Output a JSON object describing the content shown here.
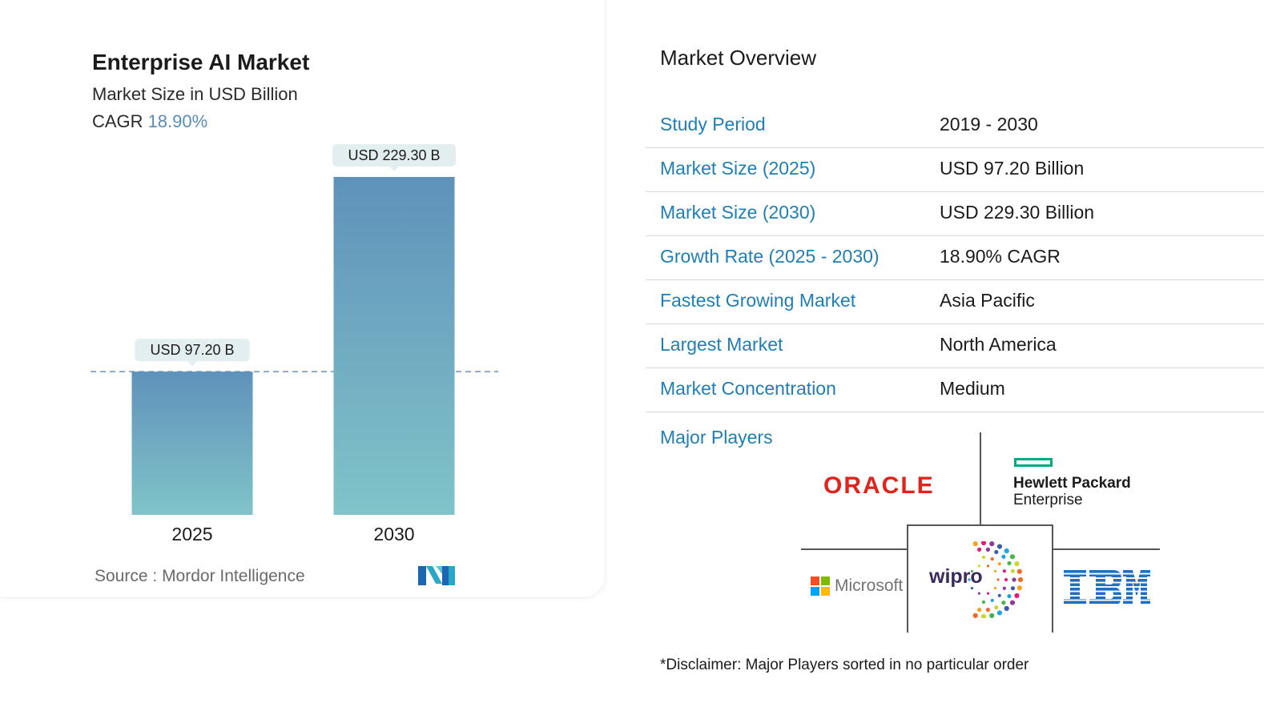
{
  "chart_data": {
    "type": "bar",
    "title": "Enterprise AI Market",
    "subtitle": "Market Size in USD Billion",
    "cagr_label": "CAGR",
    "cagr_value": "18.90%",
    "categories": [
      "2025",
      "2030"
    ],
    "values": [
      97.2,
      229.3
    ],
    "data_labels": [
      "USD 97.20 B",
      "USD 229.30 B"
    ],
    "ylim": [
      0,
      229.3
    ],
    "reference_line": 97.2,
    "bar_colors": {
      "top": "#5f92ba",
      "bottom": "#80c4c9"
    },
    "source_label": "Source :",
    "source": "Mordor Intelligence"
  },
  "overview": {
    "title": "Market Overview",
    "rows": [
      {
        "label": "Study Period",
        "value": "2019 - 2030"
      },
      {
        "label": "Market Size (2025)",
        "value": "USD 97.20 Billion"
      },
      {
        "label": "Market Size (2030)",
        "value": "USD 229.30 Billion"
      },
      {
        "label": "Growth Rate (2025 - 2030)",
        "value": "18.90% CAGR"
      },
      {
        "label": "Fastest Growing Market",
        "value": "Asia Pacific"
      },
      {
        "label": "Largest Market",
        "value": "North America"
      },
      {
        "label": "Market Concentration",
        "value": "Medium"
      }
    ],
    "major_players_title": "Major Players",
    "players": {
      "oracle": "ORACLE",
      "hpe_line1": "Hewlett Packard",
      "hpe_line2": "Enterprise",
      "microsoft": "Microsoft",
      "wipro": "wipro",
      "ibm": "IBM"
    },
    "disclaimer": "*Disclaimer: Major Players sorted in no particular order"
  },
  "colors": {
    "accent": "#1f7fb5",
    "cagr": "#5a8cb6",
    "oracle": "#e0231b",
    "hpe": "#01a982",
    "ibm": "#1f70c1"
  }
}
